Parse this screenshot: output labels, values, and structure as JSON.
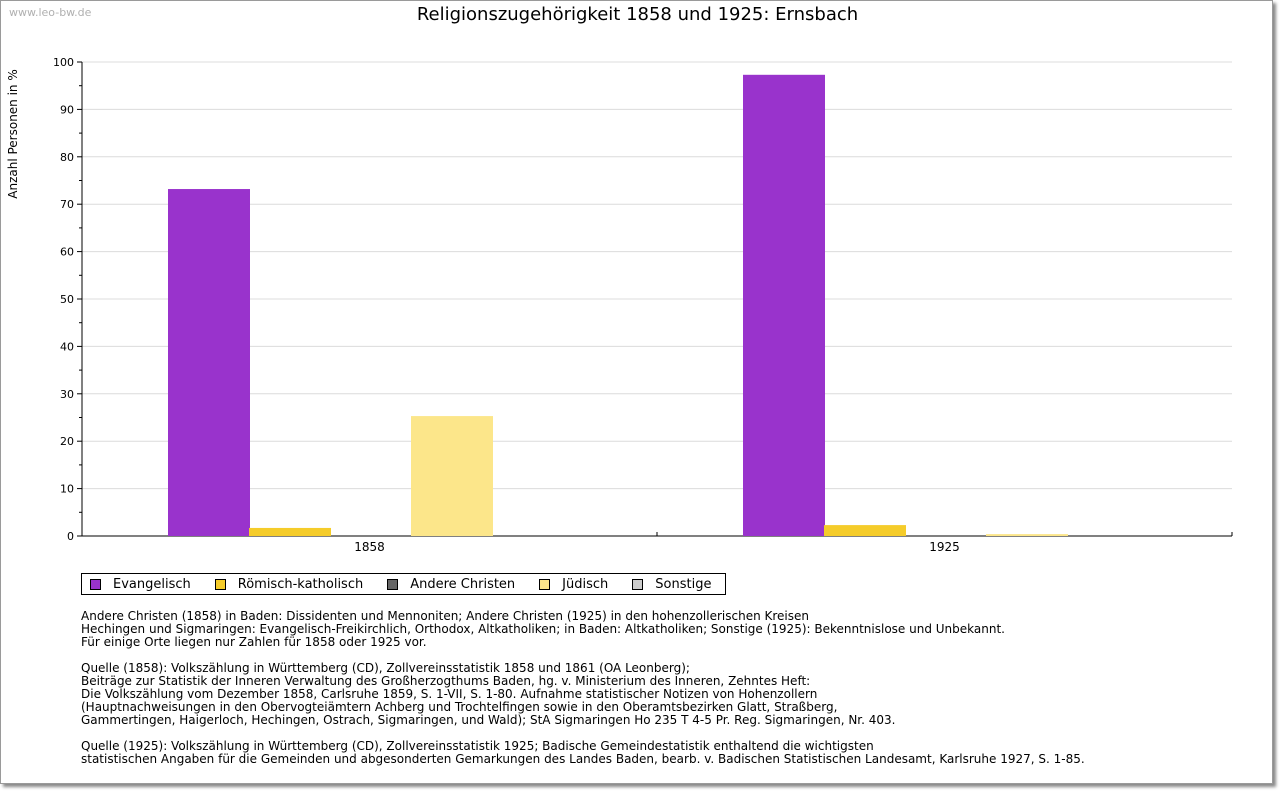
{
  "watermark": "www.leo-bw.de",
  "chart_data": {
    "type": "bar",
    "title": "Religionszugehörigkeit 1858 und 1925: Ernsbach",
    "xlabel": "",
    "ylabel": "Anzahl Personen in %",
    "ylim": [
      0,
      100
    ],
    "yticks": [
      0,
      10,
      20,
      30,
      40,
      50,
      60,
      70,
      80,
      90,
      100
    ],
    "grid": true,
    "legend_position": "bottom-left",
    "categories": [
      "1858",
      "1925"
    ],
    "series": [
      {
        "name": "Evangelisch",
        "color": "#9933cc",
        "values": [
          73.2,
          97.3
        ]
      },
      {
        "name": "Römisch-katholisch",
        "color": "#f5cc2a",
        "values": [
          1.7,
          2.3
        ]
      },
      {
        "name": "Andere Christen",
        "color": "#666666",
        "values": [
          0,
          0
        ]
      },
      {
        "name": "Jüdisch",
        "color": "#fce68a",
        "values": [
          25.3,
          0.4
        ]
      },
      {
        "name": "Sonstige",
        "color": "#cccccc",
        "values": [
          0,
          0
        ]
      }
    ]
  },
  "notes": [
    "Andere Christen (1858) in Baden: Dissidenten und Mennoniten; Andere Christen (1925) in den hohenzollerischen Kreisen",
    "Hechingen und Sigmaringen: Evangelisch-Freikirchlich, Orthodox, Altkatholiken; in Baden: Altkatholiken; Sonstige (1925): Bekenntnislose und Unbekannt.",
    "Für einige Orte liegen nur Zahlen für 1858 oder 1925 vor.",
    "",
    "Quelle (1858): Volkszählung in Württemberg (CD), Zollvereinsstatistik 1858 und 1861 (OA Leonberg);",
    "Beiträge zur Statistik der Inneren Verwaltung des Großherzogthums Baden, hg. v. Ministerium des Inneren, Zehntes Heft:",
    "Die Volkszählung vom Dezember 1858, Carlsruhe 1859, S. 1-VII, S. 1-80. Aufnahme statistischer Notizen von Hohenzollern",
    "(Hauptnachweisungen in den Obervogteiämtern Achberg und Trochtelfingen sowie in den Oberamtsbezirken Glatt, Straßberg,",
    "Gammertingen, Haigerloch, Hechingen, Ostrach, Sigmaringen, und Wald); StA Sigmaringen Ho 235 T 4-5 Pr. Reg. Sigmaringen, Nr. 403.",
    "",
    "Quelle (1925): Volkszählung in Württemberg (CD), Zollvereinsstatistik 1925; Badische Gemeindestatistik enthaltend die wichtigsten",
    "statistischen Angaben für die Gemeinden und abgesonderten Gemarkungen des Landes Baden, bearb. v. Badischen Statistischen Landesamt, Karlsruhe 1927, S. 1-85."
  ]
}
